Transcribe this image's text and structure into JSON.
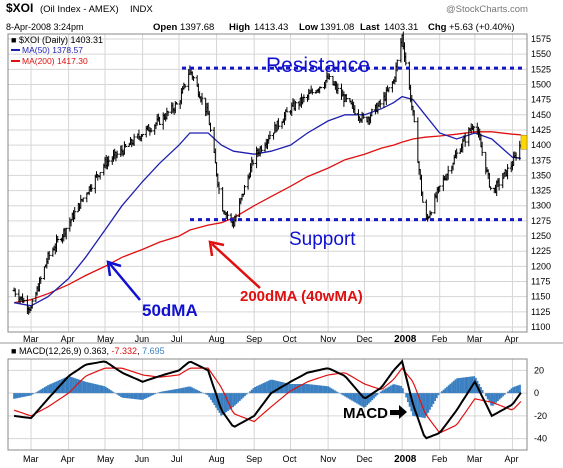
{
  "header": {
    "symbol": "$XOI",
    "symbol_desc": "(Oil Index - AMEX)",
    "exchange": "INDX",
    "watermark": "@StockCharts.com",
    "date_line": "8-Apr-2008 3:24pm",
    "open_label": "Open",
    "open_val": "1397.68",
    "high_label": "High",
    "high_val": "1413.43",
    "low_label": "Low",
    "low_val": "1391.08",
    "last_label": "Last",
    "last_val": "1403.31",
    "chg_label": "Chg",
    "chg_val": "+5.63 (+0.40%)"
  },
  "legend": {
    "price": "$XOI (Daily) 1403.31",
    "ma50": "MA(50) 1378.57",
    "ma200": "MA(200) 1417.30"
  },
  "macd_legend": {
    "label": "MACD(12,26,9)",
    "v1": "0.363",
    "v2": "-7.332",
    "v3": "7.695"
  },
  "annotations": {
    "resistance": "Resistance",
    "support": "Support",
    "ma50": "50dMA",
    "ma200": "200dMA (40wMA)",
    "macd": "MACD"
  },
  "colors": {
    "price": "#000000",
    "ma50": "#1f1fb0",
    "ma200": "#e01010",
    "histogram": "#3a7fc1",
    "annotation_blue": "#1010d0",
    "annotation_red": "#e01010",
    "dotted_line": "#1515c8",
    "up_arrow": "#ffd700",
    "grid": "#d6d6d6"
  },
  "chart_data": [
    {
      "type": "line",
      "title": "$XOI (Oil Index - AMEX) INDX",
      "x": [
        "2007-02-15",
        "2007-03-01",
        "2007-03-15",
        "2007-04-01",
        "2007-04-15",
        "2007-05-01",
        "2007-05-15",
        "2007-06-01",
        "2007-06-15",
        "2007-07-01",
        "2007-07-10",
        "2007-07-25",
        "2007-08-05",
        "2007-08-15",
        "2007-09-01",
        "2007-09-15",
        "2007-10-01",
        "2007-10-15",
        "2007-11-01",
        "2007-11-15",
        "2007-12-01",
        "2007-12-15",
        "2007-12-25",
        "2008-01-01",
        "2008-01-10",
        "2008-01-20",
        "2008-02-01",
        "2008-02-15",
        "2008-03-01",
        "2008-03-15",
        "2008-04-01",
        "2008-04-08"
      ],
      "series": [
        {
          "name": "$XOI (Daily)",
          "values": [
            1160,
            1130,
            1215,
            1270,
            1320,
            1370,
            1390,
            1420,
            1440,
            1470,
            1525,
            1450,
            1300,
            1270,
            1380,
            1420,
            1460,
            1480,
            1510,
            1475,
            1440,
            1470,
            1505,
            1580,
            1450,
            1270,
            1330,
            1385,
            1440,
            1320,
            1370,
            1403
          ]
        },
        {
          "name": "MA(50)",
          "values": [
            1140,
            1135,
            1150,
            1180,
            1215,
            1260,
            1300,
            1340,
            1370,
            1400,
            1420,
            1420,
            1400,
            1390,
            1385,
            1390,
            1400,
            1420,
            1440,
            1450,
            1450,
            1460,
            1470,
            1480,
            1475,
            1450,
            1420,
            1410,
            1420,
            1410,
            1380,
            1378
          ]
        },
        {
          "name": "MA(200)",
          "values": [
            1140,
            1145,
            1155,
            1170,
            1185,
            1200,
            1215,
            1228,
            1240,
            1250,
            1260,
            1268,
            1272,
            1280,
            1300,
            1315,
            1332,
            1348,
            1362,
            1376,
            1385,
            1395,
            1400,
            1405,
            1410,
            1413,
            1415,
            1418,
            1422,
            1422,
            1418,
            1417
          ]
        }
      ],
      "ylim": [
        1100,
        1575
      ],
      "y_ticks": [
        "1575",
        "1550",
        "1525",
        "1500",
        "1475",
        "1450",
        "1425",
        "1400",
        "1375",
        "1350",
        "1325",
        "1300",
        "1275",
        "1250",
        "1225",
        "1200",
        "1175",
        "1150",
        "1125",
        "1100"
      ],
      "x_ticks": [
        "Mar",
        "Apr",
        "May",
        "Jun",
        "Jul",
        "Aug",
        "Sep",
        "Oct",
        "Nov",
        "Dec",
        "2008",
        "Feb",
        "Mar",
        "Apr"
      ],
      "reference_lines": [
        {
          "label": "Resistance",
          "y": 1527
        },
        {
          "label": "Support",
          "y": 1277
        }
      ],
      "grid": true
    },
    {
      "type": "line",
      "title": "MACD(12,26,9)",
      "x": [
        "2007-02-15",
        "2007-03-01",
        "2007-03-15",
        "2007-04-01",
        "2007-04-15",
        "2007-05-01",
        "2007-05-15",
        "2007-06-01",
        "2007-06-15",
        "2007-07-01",
        "2007-07-10",
        "2007-07-25",
        "2007-08-05",
        "2007-08-15",
        "2007-09-01",
        "2007-09-15",
        "2007-10-01",
        "2007-10-15",
        "2007-11-01",
        "2007-11-15",
        "2007-12-01",
        "2007-12-15",
        "2007-12-25",
        "2008-01-01",
        "2008-01-10",
        "2008-01-20",
        "2008-02-01",
        "2008-02-15",
        "2008-03-01",
        "2008-03-15",
        "2008-04-01",
        "2008-04-08"
      ],
      "series": [
        {
          "name": "MACD",
          "values": [
            -20,
            -22,
            -5,
            15,
            25,
            28,
            18,
            10,
            15,
            20,
            28,
            20,
            -15,
            -30,
            -20,
            0,
            10,
            18,
            22,
            15,
            -5,
            5,
            20,
            28,
            -10,
            -40,
            -35,
            -15,
            10,
            -20,
            -10,
            0.363
          ]
        },
        {
          "name": "Signal",
          "values": [
            -15,
            -20,
            -12,
            0,
            15,
            22,
            22,
            16,
            14,
            16,
            22,
            22,
            5,
            -18,
            -25,
            -12,
            2,
            10,
            16,
            18,
            8,
            3,
            12,
            22,
            10,
            -18,
            -35,
            -28,
            -5,
            -8,
            -15,
            -7.332
          ]
        },
        {
          "name": "Histogram",
          "values": [
            -5,
            -2,
            7,
            15,
            10,
            6,
            -4,
            -6,
            1,
            4,
            6,
            -2,
            -20,
            -12,
            5,
            12,
            8,
            8,
            6,
            -3,
            -13,
            2,
            8,
            6,
            -20,
            -22,
            0,
            13,
            15,
            -12,
            5,
            7.695
          ]
        }
      ],
      "ylim": [
        -50,
        30
      ],
      "y_ticks": [
        "20",
        "0",
        "-20",
        "-40"
      ],
      "x_ticks": [
        "Mar",
        "Apr",
        "May",
        "Jun",
        "Jul",
        "Aug",
        "Sep",
        "Oct",
        "Nov",
        "Dec",
        "2008",
        "Feb",
        "Mar",
        "Apr"
      ],
      "grid": true
    }
  ]
}
